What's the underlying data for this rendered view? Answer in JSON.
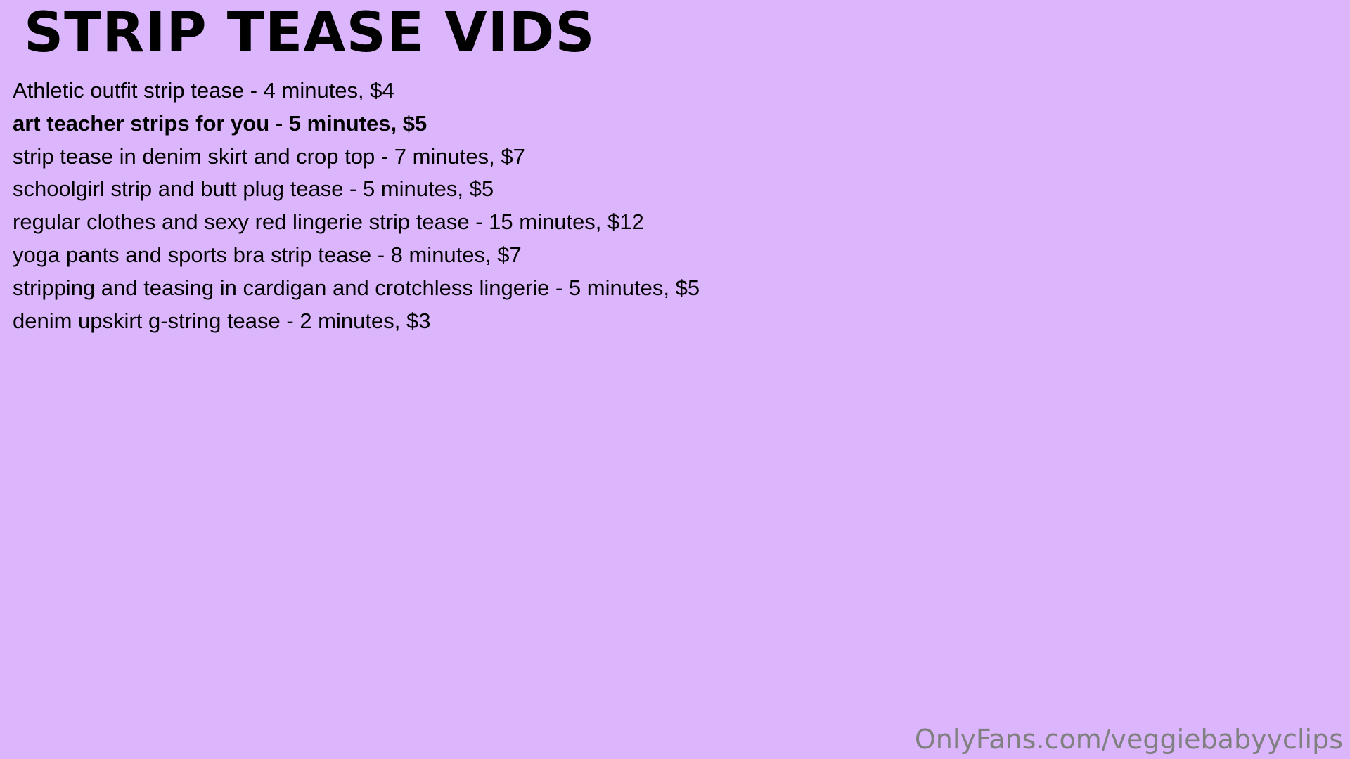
{
  "title": "STRIP TEASE VIDS",
  "items": [
    {
      "text": "Athletic outfit strip tease - 4 minutes, $4",
      "bold": false
    },
    {
      "text": "art teacher strips for you - 5 minutes, $5",
      "bold": true
    },
    {
      "text": "strip tease in denim skirt and crop top - 7 minutes, $7",
      "bold": false
    },
    {
      "text": "schoolgirl strip and butt plug tease - 5 minutes, $5",
      "bold": false
    },
    {
      "text": "regular clothes and sexy red lingerie strip tease - 15 minutes, $12",
      "bold": false
    },
    {
      "text": "yoga pants and sports bra strip tease - 8 minutes, $7",
      "bold": false
    },
    {
      "text": "stripping and teasing in cardigan and crotchless lingerie - 5 minutes, $5",
      "bold": false
    },
    {
      "text": "denim upskirt g-string tease - 2 minutes, $3",
      "bold": false
    }
  ],
  "watermark": "OnlyFans.com/veggiebabyyclips",
  "colors": {
    "background": "#dbb6fd",
    "text": "#000000",
    "watermark": "#808080"
  }
}
